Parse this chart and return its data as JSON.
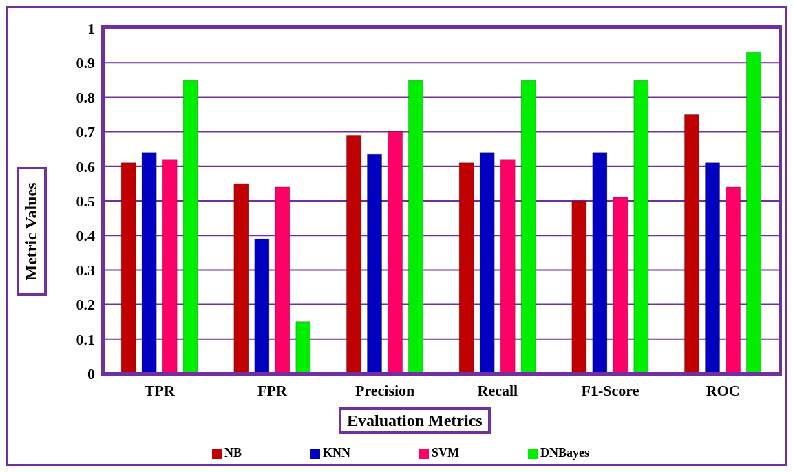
{
  "chart_data": {
    "type": "bar",
    "xlabel": "Evaluation Metrics",
    "ylabel": "Metric Values",
    "categories": [
      "TPR",
      "FPR",
      "Precision",
      "Recall",
      "F1-Score",
      "ROC"
    ],
    "series": [
      {
        "name": "NB",
        "color": "#c00000",
        "values": [
          0.61,
          0.55,
          0.69,
          0.61,
          0.5,
          0.75
        ]
      },
      {
        "name": "KNN",
        "color": "#0000c0",
        "values": [
          0.64,
          0.39,
          0.635,
          0.64,
          0.64,
          0.61
        ]
      },
      {
        "name": "SVM",
        "color": "#ff0066",
        "values": [
          0.62,
          0.54,
          0.7,
          0.62,
          0.51,
          0.54
        ]
      },
      {
        "name": "DNBayes",
        "color": "#00ee00",
        "values": [
          0.85,
          0.15,
          0.85,
          0.85,
          0.85,
          0.93
        ]
      }
    ],
    "ylim": [
      0,
      1
    ],
    "yticks": [
      0,
      0.1,
      0.2,
      0.3,
      0.4,
      0.5,
      0.6,
      0.7,
      0.8,
      0.9,
      1
    ],
    "grid": "y",
    "legend": "bottom"
  }
}
